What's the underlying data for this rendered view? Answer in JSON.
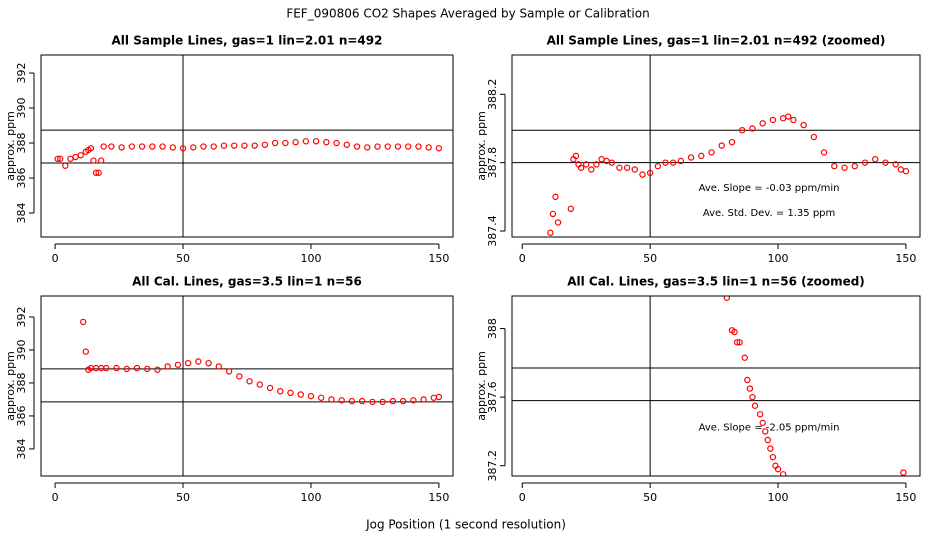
{
  "title": "FEF_090806  CO2 Shapes Averaged by Sample or Calibration",
  "xlabel": "Jog Position (1 second resolution)",
  "chart_data": [
    {
      "type": "scatter",
      "title": "All Sample Lines, gas=1 lin=2.01 n=492",
      "ylabel": "approx. ppm",
      "color": "#ff0000",
      "xlim": [
        -5.5,
        155.5
      ],
      "ylim": [
        382.63,
        393.03
      ],
      "xticks": [
        0,
        50,
        100,
        150
      ],
      "yticks": [
        384,
        386,
        388,
        390,
        392
      ],
      "hlines": [
        388.74,
        386.86
      ],
      "vline": 50,
      "annotations": [],
      "x": [
        1,
        2,
        4,
        6,
        8,
        10,
        12,
        13,
        14,
        15,
        16,
        17,
        18,
        19,
        22,
        26,
        30,
        34,
        38,
        42,
        46,
        50,
        54,
        58,
        62,
        66,
        70,
        74,
        78,
        82,
        86,
        90,
        94,
        98,
        102,
        106,
        110,
        114,
        118,
        122,
        126,
        130,
        134,
        138,
        142,
        146,
        150
      ],
      "y": [
        387.1,
        387.1,
        386.7,
        387.1,
        387.2,
        387.3,
        387.5,
        387.6,
        387.7,
        387.0,
        386.3,
        386.3,
        387.0,
        387.8,
        387.8,
        387.75,
        387.8,
        387.8,
        387.8,
        387.8,
        387.75,
        387.7,
        387.75,
        387.8,
        387.8,
        387.85,
        387.85,
        387.85,
        387.85,
        387.9,
        388.0,
        388.0,
        388.05,
        388.1,
        388.1,
        388.05,
        388.0,
        387.9,
        387.8,
        387.75,
        387.8,
        387.8,
        387.8,
        387.8,
        387.8,
        387.75,
        387.7
      ]
    },
    {
      "type": "scatter",
      "title": "All Sample Lines, gas=1 lin=2.01 n=492 (zoomed)",
      "ylabel": "approx. ppm",
      "color": "#ff0000",
      "xlim": [
        -4,
        155.5
      ],
      "ylim": [
        387.365,
        388.43
      ],
      "xticks": [
        0,
        50,
        100,
        150
      ],
      "yticks": [
        387.4,
        387.8,
        388.2
      ],
      "hlines": [
        387.99,
        387.8
      ],
      "vline": 50,
      "annotations": [
        "Ave. Slope =  -0.03  ppm/min",
        "Ave. Std. Dev. =  1.35  ppm"
      ],
      "x": [
        11,
        12,
        13,
        14,
        19,
        20,
        21,
        22,
        23,
        25,
        27,
        29,
        31,
        33,
        35,
        38,
        41,
        44,
        47,
        50,
        53,
        56,
        59,
        62,
        66,
        70,
        74,
        78,
        82,
        86,
        90,
        94,
        98,
        102,
        104,
        106,
        110,
        114,
        118,
        122,
        126,
        130,
        134,
        138,
        142,
        146,
        148,
        150
      ],
      "y": [
        387.39,
        387.5,
        387.6,
        387.45,
        387.53,
        387.82,
        387.84,
        387.79,
        387.77,
        387.79,
        387.76,
        387.79,
        387.82,
        387.81,
        387.8,
        387.77,
        387.77,
        387.76,
        387.73,
        387.74,
        387.78,
        387.8,
        387.8,
        387.81,
        387.83,
        387.84,
        387.86,
        387.9,
        387.92,
        387.99,
        388.0,
        388.03,
        388.05,
        388.06,
        388.07,
        388.05,
        388.02,
        387.95,
        387.86,
        387.78,
        387.77,
        387.78,
        387.8,
        387.82,
        387.8,
        387.79,
        387.76,
        387.75
      ]
    },
    {
      "type": "scatter",
      "title": "All Cal. Lines, gas=3.5 lin=1 n=56",
      "ylabel": "approx. ppm",
      "color": "#ff0000",
      "xlim": [
        -5.5,
        155.5
      ],
      "ylim": [
        382.36,
        393.27
      ],
      "xticks": [
        0,
        50,
        100,
        150
      ],
      "yticks": [
        384,
        386,
        388,
        390,
        392
      ],
      "hlines": [
        388.85,
        386.85
      ],
      "vline": 50,
      "annotations": [],
      "x": [
        11,
        12,
        13,
        14,
        16,
        18,
        20,
        24,
        28,
        32,
        36,
        40,
        44,
        48,
        52,
        56,
        60,
        64,
        68,
        72,
        76,
        80,
        84,
        88,
        92,
        96,
        100,
        104,
        108,
        112,
        116,
        120,
        124,
        128,
        132,
        136,
        140,
        144,
        148,
        150
      ],
      "y": [
        391.7,
        389.9,
        388.8,
        388.9,
        388.9,
        388.9,
        388.9,
        388.9,
        388.85,
        388.9,
        388.85,
        388.8,
        389.0,
        389.1,
        389.2,
        389.3,
        389.2,
        389.0,
        388.7,
        388.4,
        388.1,
        387.9,
        387.7,
        387.5,
        387.4,
        387.3,
        387.2,
        387.1,
        387.0,
        386.95,
        386.9,
        386.9,
        386.85,
        386.85,
        386.9,
        386.9,
        386.95,
        387.0,
        387.1,
        387.15
      ]
    },
    {
      "type": "scatter",
      "title": "All Cal. Lines, gas=3.5 lin=1 n=56 (zoomed)",
      "ylabel": "approx. ppm",
      "color": "#ff0000",
      "xlim": [
        -4,
        155.5
      ],
      "ylim": [
        387.14,
        388.19
      ],
      "xticks": [
        0,
        50,
        100,
        150
      ],
      "yticks": [
        387.2,
        387.6,
        388.0
      ],
      "hlines": [
        387.77,
        387.58
      ],
      "vline": 50,
      "annotations": [
        "Ave. Slope =  -2.05  ppm/min"
      ],
      "x": [
        80,
        82,
        83,
        84,
        85,
        87,
        88,
        89,
        90,
        91,
        93,
        94,
        95,
        96,
        97,
        98,
        99,
        100,
        102,
        149
      ],
      "y": [
        388.18,
        387.99,
        387.98,
        387.92,
        387.92,
        387.83,
        387.7,
        387.65,
        387.6,
        387.55,
        387.5,
        387.45,
        387.4,
        387.35,
        387.3,
        387.25,
        387.2,
        387.18,
        387.15,
        387.16
      ]
    }
  ]
}
